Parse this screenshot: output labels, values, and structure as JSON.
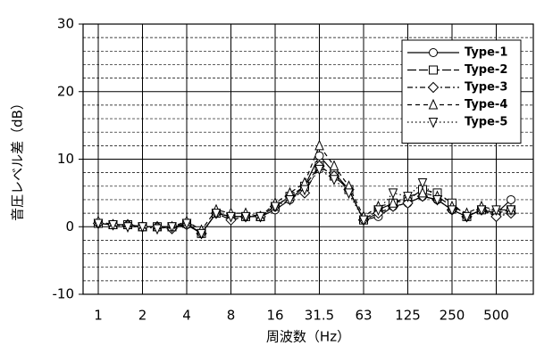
{
  "chart_data": {
    "type": "line",
    "xlabel": "周波数（Hz）",
    "ylabel": "音圧レベル差（dB）",
    "categories": [
      "1",
      null,
      null,
      "2",
      null,
      null,
      "4",
      null,
      null,
      "8",
      null,
      null,
      "16",
      null,
      null,
      "31.5",
      null,
      null,
      "63",
      null,
      null,
      "125",
      null,
      null,
      "250",
      null,
      null,
      "500",
      null,
      null
    ],
    "ylim": [
      -10,
      30
    ],
    "yticks": [
      -10,
      0,
      10,
      20,
      30
    ],
    "yminorticks": [
      -8,
      -6,
      -4,
      -2,
      2,
      4,
      6,
      8,
      12,
      14,
      16,
      18,
      22,
      24,
      26,
      28
    ],
    "grid": true,
    "legend": "upper right",
    "series": [
      {
        "name": "Type-1",
        "color": "#000000",
        "marker": "circle",
        "linestyle": "solid",
        "values": [
          0.5,
          0.3,
          0.3,
          0,
          0,
          0,
          0.3,
          -1,
          2,
          1.5,
          1.5,
          1.5,
          2.5,
          4,
          6,
          10.5,
          8,
          5.5,
          1,
          1.5,
          3,
          3.5,
          4.5,
          4,
          2.5,
          1.5,
          2.5,
          2,
          4,
          null
        ]
      },
      {
        "name": "Type-2",
        "color": "#000000",
        "marker": "square",
        "linestyle": "longdash",
        "values": [
          0.5,
          0.3,
          0.3,
          0,
          0,
          0,
          0.5,
          -1,
          2,
          1.5,
          1.5,
          1.5,
          3,
          4.5,
          6,
          9,
          7.5,
          5.5,
          1,
          2.5,
          3.5,
          4,
          5.5,
          5,
          3.5,
          1.5,
          2.5,
          2,
          2.5,
          null
        ]
      },
      {
        "name": "Type-3",
        "color": "#000000",
        "marker": "diamond",
        "linestyle": "dashdot",
        "values": [
          0.5,
          0.3,
          0.3,
          0,
          0,
          -0.3,
          0.3,
          -1,
          2,
          1,
          1.5,
          1.5,
          3,
          4.5,
          5,
          9,
          7.5,
          5.5,
          1,
          2,
          3,
          3.5,
          4.5,
          4,
          2.5,
          1.5,
          2.5,
          1.5,
          2,
          null
        ]
      },
      {
        "name": "Type-4",
        "color": "#000000",
        "marker": "triangle-up",
        "linestyle": "dashed",
        "values": [
          0.8,
          0.3,
          0.3,
          0,
          0,
          0,
          0.8,
          -0.5,
          2.5,
          2,
          2,
          1.5,
          3.5,
          5,
          6.5,
          12,
          9,
          6,
          1.5,
          3,
          3.5,
          4.5,
          5,
          4.5,
          3,
          2,
          3,
          2.5,
          2.5,
          null
        ]
      },
      {
        "name": "Type-5",
        "color": "#000000",
        "marker": "triangle-down",
        "linestyle": "dotted",
        "values": [
          0.5,
          0.3,
          0,
          0,
          -0.3,
          0,
          0.5,
          -1,
          2,
          1.5,
          1.5,
          1.5,
          3,
          4,
          5.5,
          8.5,
          7,
          5,
          1,
          2.5,
          5,
          4.5,
          6.5,
          4,
          2.5,
          1.5,
          2.5,
          2.5,
          2.5,
          null
        ]
      }
    ]
  }
}
